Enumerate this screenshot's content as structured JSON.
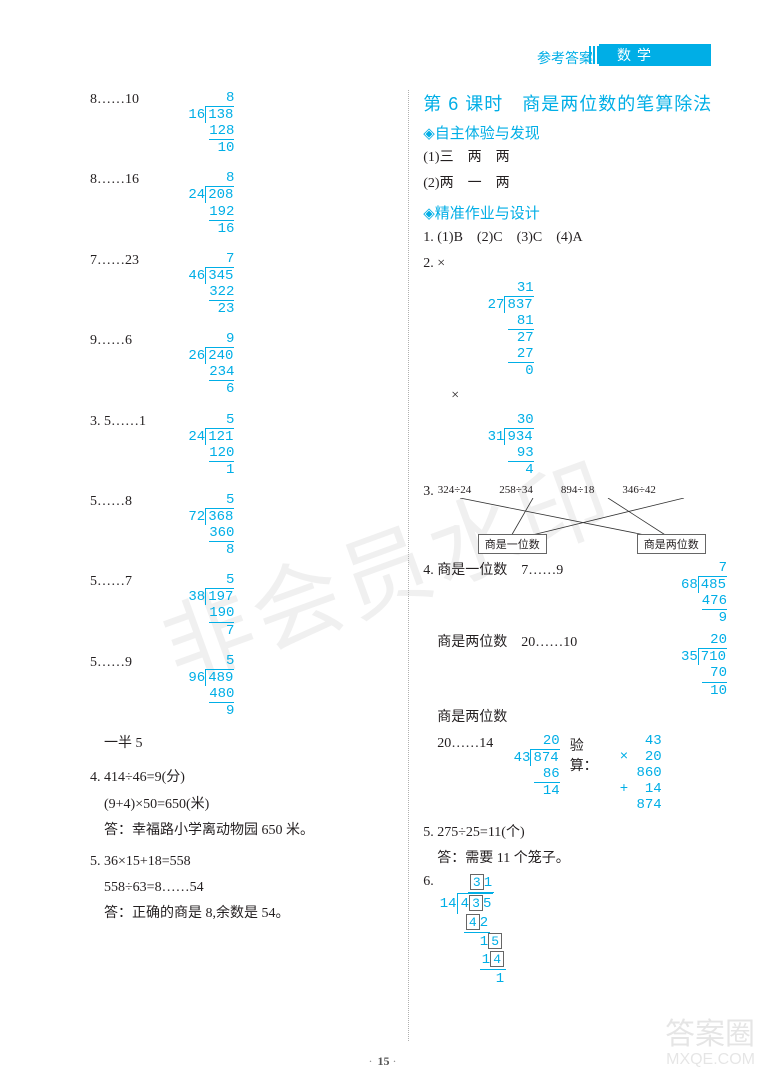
{
  "header": {
    "answers_label": "参考答案",
    "subject": "数学",
    "star": "✦"
  },
  "footer": {
    "page_number": "15"
  },
  "watermarks": {
    "diag": "非会员水印",
    "corner_line1": "答案圈",
    "corner_line2": "MXQE.COM"
  },
  "left": {
    "divisions": [
      {
        "label": "8……10",
        "divisor": "16",
        "dividend": "138",
        "quotient": "8",
        "steps": [
          [
            "128",
            "10"
          ]
        ]
      },
      {
        "label": "8……16",
        "divisor": "24",
        "dividend": "208",
        "quotient": "8",
        "steps": [
          [
            "192",
            "16"
          ]
        ]
      },
      {
        "label": "7……23",
        "divisor": "46",
        "dividend": "345",
        "quotient": "7",
        "steps": [
          [
            "322",
            "23"
          ]
        ]
      },
      {
        "label": "9……6",
        "divisor": "26",
        "dividend": "240",
        "quotient": "9",
        "steps": [
          [
            "234",
            "6"
          ]
        ]
      }
    ],
    "q3_first": {
      "label": "3. 5……1",
      "divisor": "24",
      "dividend": "121",
      "quotient": "5",
      "steps": [
        [
          "120",
          "1"
        ]
      ]
    },
    "q3_rest": [
      {
        "label": "5……8",
        "divisor": "72",
        "dividend": "368",
        "quotient": "5",
        "steps": [
          [
            "360",
            "8"
          ]
        ]
      },
      {
        "label": "5……7",
        "divisor": "38",
        "dividend": "197",
        "quotient": "5",
        "steps": [
          [
            "190",
            "7"
          ]
        ]
      },
      {
        "label": "5……9",
        "divisor": "96",
        "dividend": "489",
        "quotient": "5",
        "steps": [
          [
            "480",
            "9"
          ]
        ]
      }
    ],
    "half": "一半  5",
    "q4": {
      "line1": "4. 414÷46=9(分)",
      "line2": "(9+4)×50=650(米)",
      "line3": "答：幸福路小学离动物园 650 米。"
    },
    "q5": {
      "line1": "5. 36×15+18=558",
      "line2": "558÷63=8……54",
      "line3": "答：正确的商是 8,余数是 54。"
    }
  },
  "right": {
    "lesson_title": "第 6 课时　商是两位数的笔算除法",
    "section1": "◈自主体验与发现",
    "s1_line1": "(1)三　两　两",
    "s1_line2": "(2)两　一　两",
    "section2": "◈精准作业与设计",
    "q1": "1. (1)B　(2)C　(3)C　(4)A",
    "q2_label": "2. ×",
    "q2a": {
      "divisor": "27",
      "dividend": "837",
      "quotient": "31",
      "lines": [
        "81",
        "27",
        "27",
        "0"
      ]
    },
    "q2b_mark": "×",
    "q2b": {
      "divisor": "31",
      "dividend": "934",
      "quotient": "30",
      "lines": [
        "93",
        "4"
      ]
    },
    "q3_label": "3.",
    "match_top": [
      "324÷24",
      "258÷34",
      "894÷18",
      "346÷42"
    ],
    "match_bottom": [
      "商是一位数",
      "商是两位数"
    ],
    "q4_label_a": "4. 商是一位数　7……9",
    "q4a": {
      "divisor": "68",
      "dividend": "485",
      "quotient": "7",
      "steps": [
        [
          "476",
          "9"
        ]
      ]
    },
    "q4_label_b": "商是两位数　20……10",
    "q4b": {
      "divisor": "35",
      "dividend": "710",
      "quotient": "20",
      "steps": [
        [
          "70",
          "10"
        ]
      ]
    },
    "q4_label_c": "商是两位数",
    "q4_label_c2": "20……14",
    "q4c": {
      "divisor": "43",
      "dividend": "874",
      "quotient": "20",
      "steps": [
        [
          "86",
          "14"
        ]
      ]
    },
    "verify_label": "验算：",
    "verify": {
      "a": "43",
      "b": "20",
      "c": "860",
      "d": "14",
      "e": "874"
    },
    "q5": {
      "line1": "5. 275÷25=11(个)",
      "line2": "答：需要 11 个笼子。"
    },
    "q6_label": "6.",
    "q6": {
      "quotient_box": "3",
      "quotient_1": "1",
      "divisor": "14",
      "dividend_4": "4",
      "dividend_box": "3",
      "dividend_5": "5",
      "s1_box": "4",
      "s1_2": "2",
      "s2_1": "1",
      "s2_box": "5",
      "s3_1": "1",
      "s3_box": "4",
      "rem": "1"
    }
  },
  "colors": {
    "accent": "#00aee6",
    "text": "#231f20"
  }
}
